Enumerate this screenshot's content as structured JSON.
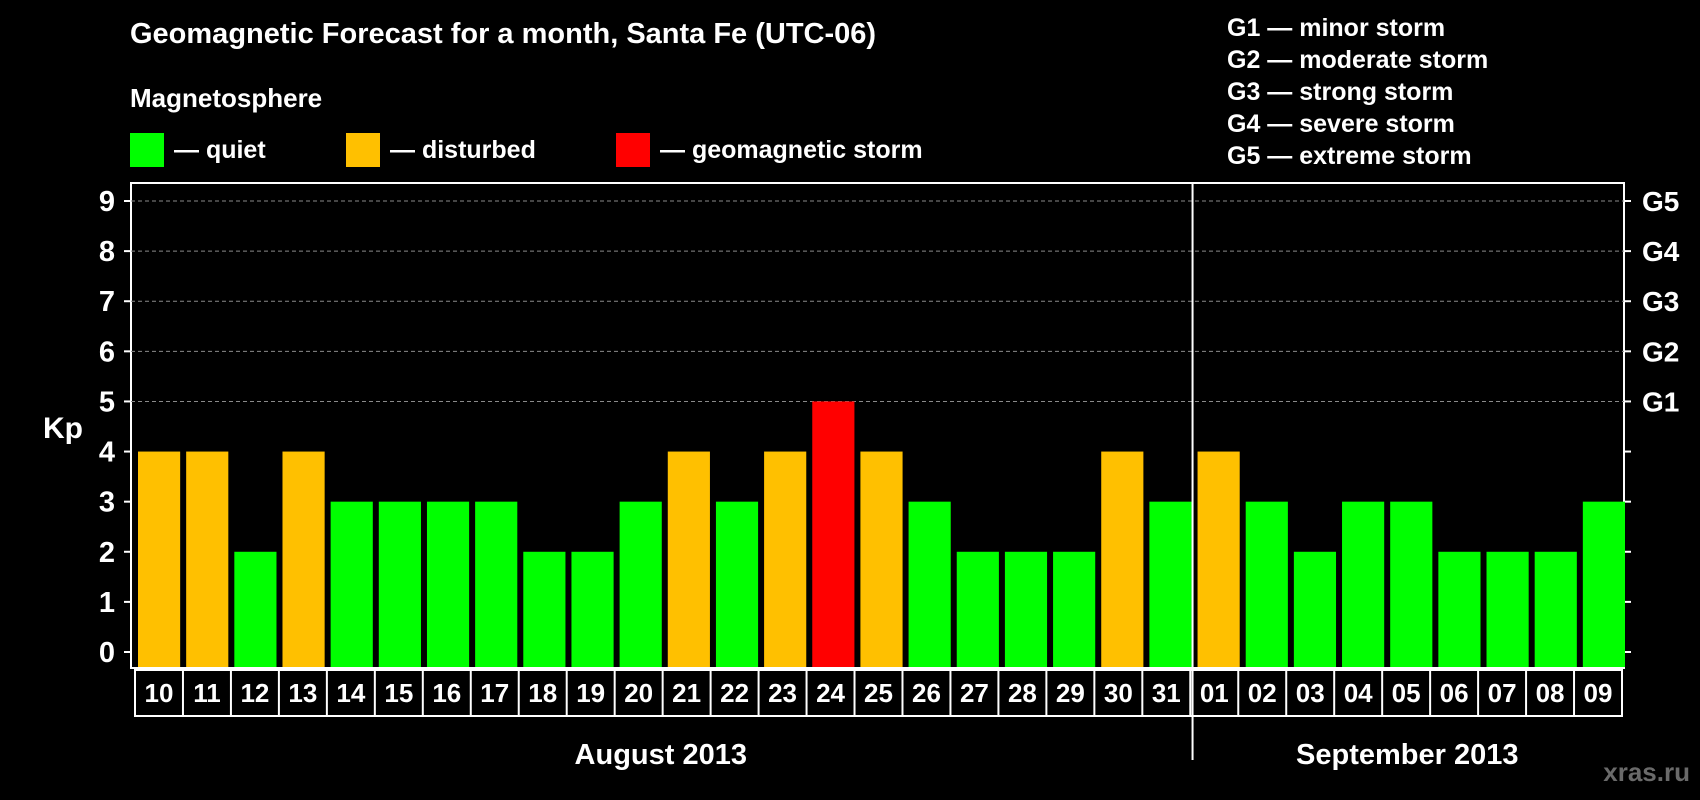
{
  "header": {
    "title": "Geomagnetic Forecast for a month, Santa Fe (UTC-06)",
    "subtitle": "Magnetosphere"
  },
  "legend": {
    "quiet": {
      "label": "— quiet",
      "color": "#00ff00"
    },
    "disturbed": {
      "label": "— disturbed",
      "color": "#ffc000"
    },
    "storm": {
      "label": "— geomagnetic storm",
      "color": "#ff0000"
    }
  },
  "storm_scale": [
    "G1 — minor storm",
    "G2 — moderate storm",
    "G3 — strong storm",
    "G4 — severe storm",
    "G5 — extreme storm"
  ],
  "watermark": "xras.ru",
  "chart_data": {
    "type": "bar",
    "title": "Geomagnetic Forecast for a month, Santa Fe (UTC-06)",
    "ylabel": "Kp",
    "ylim": [
      0,
      9
    ],
    "yticks": [
      "0",
      "1",
      "2",
      "3",
      "4",
      "5",
      "6",
      "7",
      "8",
      "9"
    ],
    "right_axis_labels": [
      {
        "kp": 5,
        "label": "G1"
      },
      {
        "kp": 6,
        "label": "G2"
      },
      {
        "kp": 7,
        "label": "G3"
      },
      {
        "kp": 8,
        "label": "G4"
      },
      {
        "kp": 9,
        "label": "G5"
      }
    ],
    "grid": true,
    "categories": [
      "10",
      "11",
      "12",
      "13",
      "14",
      "15",
      "16",
      "17",
      "18",
      "19",
      "20",
      "21",
      "22",
      "23",
      "24",
      "25",
      "26",
      "27",
      "28",
      "29",
      "30",
      "31",
      "01",
      "02",
      "03",
      "04",
      "05",
      "06",
      "07",
      "08",
      "09"
    ],
    "values": [
      4,
      4,
      2,
      4,
      3,
      3,
      3,
      3,
      2,
      2,
      3,
      4,
      3,
      4,
      5,
      4,
      3,
      2,
      2,
      2,
      4,
      3,
      4,
      3,
      2,
      3,
      3,
      2,
      2,
      2,
      3
    ],
    "status": [
      "disturbed",
      "disturbed",
      "quiet",
      "disturbed",
      "quiet",
      "quiet",
      "quiet",
      "quiet",
      "quiet",
      "quiet",
      "quiet",
      "disturbed",
      "quiet",
      "disturbed",
      "storm",
      "disturbed",
      "quiet",
      "quiet",
      "quiet",
      "quiet",
      "disturbed",
      "quiet",
      "disturbed",
      "quiet",
      "quiet",
      "quiet",
      "quiet",
      "quiet",
      "quiet",
      "quiet",
      "quiet"
    ],
    "months": [
      {
        "label": "August 2013",
        "count": 22
      },
      {
        "label": "September 2013",
        "count": 9
      }
    ]
  }
}
